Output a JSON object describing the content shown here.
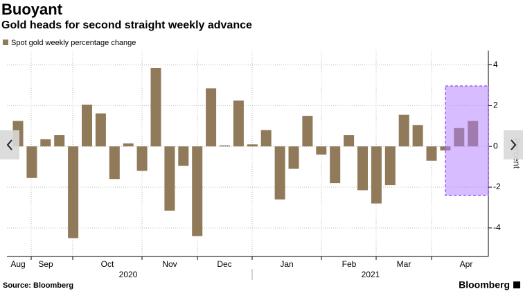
{
  "chart_data": {
    "type": "bar",
    "title": "Buoyant",
    "subtitle": "Gold heads for second straight weekly advance",
    "legend": "Spot gold weekly percentage change",
    "y_axis_label": "Percent",
    "source": "Source: Bloomberg",
    "brand": "Bloomberg",
    "months": [
      "Aug",
      "Sep",
      "Oct",
      "Nov",
      "Dec",
      "Jan",
      "Feb",
      "Mar",
      "Apr"
    ],
    "years": [
      "2020",
      "2021"
    ],
    "categories": [
      null,
      null,
      null,
      null,
      null,
      null,
      null,
      null,
      null,
      null,
      null,
      null,
      null,
      null,
      null,
      null,
      null,
      null,
      null,
      null,
      null,
      null,
      null,
      null,
      null,
      null,
      null,
      null,
      null,
      null,
      null,
      null,
      null,
      null
    ],
    "values": [
      1.25,
      -1.55,
      0.35,
      0.55,
      -4.5,
      2.05,
      1.62,
      -1.6,
      0.15,
      -1.2,
      3.85,
      -3.15,
      -0.95,
      -4.4,
      2.85,
      0.05,
      2.25,
      0.1,
      0.8,
      -2.6,
      -1.1,
      1.5,
      -0.4,
      -1.8,
      0.55,
      -2.15,
      -2.8,
      -1.9,
      1.55,
      1.05,
      -0.7,
      -0.2,
      0.9,
      1.25
    ],
    "color": "#917a5a",
    "ylim": [
      -5.4,
      4.7
    ],
    "yticks": [
      -4,
      -2,
      0,
      2,
      4
    ],
    "grid": true
  }
}
